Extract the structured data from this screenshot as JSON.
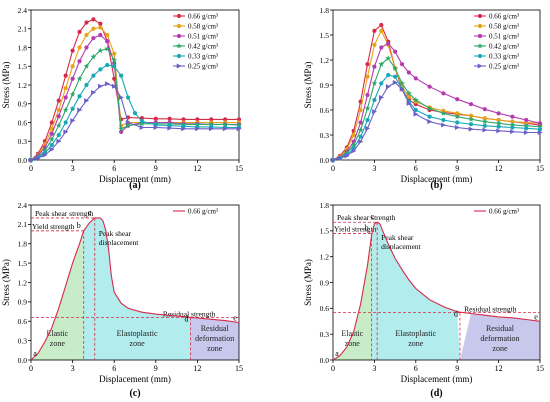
{
  "chart_data": [
    {
      "id": "a",
      "type": "line",
      "panel_label": "(a)",
      "xlabel": "Displacement (mm)",
      "ylabel": "Stress (MPa)",
      "xlim": [
        0,
        15
      ],
      "ylim": [
        0,
        2.4
      ],
      "xticks": [
        0,
        3,
        6,
        9,
        12,
        15
      ],
      "yticks": [
        0,
        0.3,
        0.6,
        0.9,
        1.2,
        1.5,
        1.8,
        2.1,
        2.4
      ],
      "ytick_labels": [
        "0.0",
        "0.3",
        "0.6",
        "0.9",
        "1.2",
        "1.5",
        "1.8",
        "2.1",
        "2.4"
      ],
      "legend_position": "top-right",
      "series": [
        {
          "name": "0.66 g/cm³",
          "color": "#d62a4a",
          "marker": "circle",
          "x": [
            0,
            0.5,
            1,
            1.5,
            2,
            2.5,
            3,
            3.5,
            4,
            4.5,
            5,
            5.5,
            6,
            6.5,
            7,
            8,
            9,
            10,
            11,
            12,
            13,
            14,
            15
          ],
          "y": [
            0,
            0.1,
            0.3,
            0.6,
            0.95,
            1.35,
            1.75,
            2.05,
            2.2,
            2.25,
            2.18,
            1.9,
            1.3,
            0.65,
            0.68,
            0.67,
            0.66,
            0.66,
            0.65,
            0.65,
            0.65,
            0.65,
            0.65
          ]
        },
        {
          "name": "0.58 g/cm³",
          "color": "#e8a317",
          "marker": "circle",
          "x": [
            0,
            0.5,
            1,
            1.5,
            2,
            2.5,
            3,
            3.5,
            4,
            4.5,
            5,
            5.5,
            6,
            6.5,
            7,
            8,
            9,
            10,
            11,
            12,
            13,
            14,
            15
          ],
          "y": [
            0,
            0.08,
            0.25,
            0.5,
            0.8,
            1.15,
            1.5,
            1.8,
            2.0,
            2.1,
            2.12,
            2.0,
            1.7,
            0.55,
            0.6,
            0.6,
            0.6,
            0.6,
            0.6,
            0.6,
            0.6,
            0.6,
            0.6
          ]
        },
        {
          "name": "0.51 g/cm³",
          "color": "#b43bb0",
          "marker": "circle",
          "x": [
            0,
            0.5,
            1,
            1.5,
            2,
            2.5,
            3,
            3.5,
            4,
            4.5,
            5,
            5.5,
            6,
            6.5,
            7,
            8,
            9,
            10,
            11,
            12,
            13,
            14,
            15
          ],
          "y": [
            0,
            0.07,
            0.2,
            0.42,
            0.7,
            1.0,
            1.3,
            1.58,
            1.8,
            1.95,
            2.0,
            1.9,
            1.55,
            0.45,
            0.55,
            0.6,
            0.6,
            0.6,
            0.58,
            0.58,
            0.57,
            0.57,
            0.57
          ]
        },
        {
          "name": "0.42 g/cm³",
          "color": "#2ea86a",
          "marker": "star",
          "x": [
            0,
            0.5,
            1,
            1.5,
            2,
            2.5,
            3,
            3.5,
            4,
            4.5,
            5,
            5.5,
            6,
            6.5,
            7,
            8,
            9,
            10,
            11,
            12,
            13,
            14,
            15
          ],
          "y": [
            0,
            0.05,
            0.15,
            0.33,
            0.55,
            0.8,
            1.05,
            1.3,
            1.5,
            1.65,
            1.75,
            1.78,
            1.6,
            0.5,
            0.55,
            0.58,
            0.58,
            0.58,
            0.57,
            0.57,
            0.57,
            0.57,
            0.56
          ]
        },
        {
          "name": "0.33 g/cm³",
          "color": "#17a8b8",
          "marker": "circle",
          "x": [
            0,
            0.5,
            1,
            1.5,
            2,
            2.5,
            3,
            3.5,
            4,
            4.5,
            5,
            5.5,
            6,
            6.5,
            7,
            7.5,
            8,
            9,
            10,
            11,
            12,
            13,
            14,
            15
          ],
          "y": [
            0,
            0.04,
            0.11,
            0.24,
            0.4,
            0.6,
            0.82,
            1.02,
            1.2,
            1.35,
            1.45,
            1.52,
            1.5,
            1.35,
            1.0,
            0.75,
            0.62,
            0.56,
            0.55,
            0.54,
            0.53,
            0.53,
            0.52,
            0.52
          ]
        },
        {
          "name": "0.25 g/cm³",
          "color": "#6b5fc8",
          "marker": "triangle-right",
          "x": [
            0,
            0.5,
            1,
            1.5,
            2,
            2.5,
            3,
            3.5,
            4,
            4.5,
            5,
            5.5,
            6,
            6.5,
            7,
            8,
            9,
            10,
            11,
            12,
            13,
            14,
            15
          ],
          "y": [
            0,
            0.03,
            0.08,
            0.17,
            0.3,
            0.45,
            0.63,
            0.8,
            0.95,
            1.08,
            1.18,
            1.22,
            1.18,
            1.0,
            0.6,
            0.52,
            0.52,
            0.51,
            0.5,
            0.5,
            0.5,
            0.5,
            0.5
          ]
        }
      ]
    },
    {
      "id": "b",
      "type": "line",
      "panel_label": "(b)",
      "xlabel": "Displacement (mm)",
      "ylabel": "Stress (MPa)",
      "xlim": [
        0,
        15
      ],
      "ylim": [
        0,
        1.8
      ],
      "xticks": [
        0,
        3,
        6,
        9,
        12,
        15
      ],
      "yticks": [
        0,
        0.3,
        0.6,
        0.9,
        1.2,
        1.5,
        1.8
      ],
      "ytick_labels": [
        "0.0",
        "0.3",
        "0.6",
        "0.9",
        "1.2",
        "1.5",
        "1.8"
      ],
      "legend_position": "top-right",
      "series": [
        {
          "name": "0.66 g/cm³",
          "color": "#d62a4a",
          "marker": "circle",
          "x": [
            0,
            0.5,
            1,
            1.5,
            2,
            2.5,
            3,
            3.5,
            4,
            4.5,
            5,
            5.5,
            6,
            7,
            8,
            9,
            10,
            11,
            12,
            13,
            14,
            15
          ],
          "y": [
            0,
            0.05,
            0.15,
            0.35,
            0.7,
            1.15,
            1.55,
            1.62,
            1.42,
            1.1,
            0.85,
            0.72,
            0.67,
            0.6,
            0.57,
            0.55,
            0.53,
            0.5,
            0.48,
            0.46,
            0.44,
            0.42
          ]
        },
        {
          "name": "0.58 g/cm³",
          "color": "#e8a317",
          "marker": "circle",
          "x": [
            0,
            0.5,
            1,
            1.5,
            2,
            2.5,
            3,
            3.5,
            4,
            4.5,
            5,
            5.5,
            6,
            7,
            8,
            9,
            10,
            11,
            12,
            13,
            14,
            15
          ],
          "y": [
            0,
            0.04,
            0.13,
            0.3,
            0.6,
            1.0,
            1.38,
            1.55,
            1.38,
            1.1,
            0.88,
            0.76,
            0.7,
            0.63,
            0.59,
            0.56,
            0.53,
            0.5,
            0.48,
            0.46,
            0.45,
            0.44
          ]
        },
        {
          "name": "0.51 g/cm³",
          "color": "#b43bb0",
          "marker": "circle",
          "x": [
            0,
            0.5,
            1,
            1.5,
            2,
            2.5,
            3,
            3.5,
            4,
            4.5,
            5,
            5.5,
            6,
            7,
            8,
            9,
            10,
            11,
            12,
            13,
            14,
            15
          ],
          "y": [
            0,
            0.03,
            0.1,
            0.22,
            0.45,
            0.78,
            1.12,
            1.35,
            1.4,
            1.3,
            1.15,
            1.05,
            0.98,
            0.88,
            0.8,
            0.73,
            0.67,
            0.61,
            0.56,
            0.52,
            0.48,
            0.44
          ]
        },
        {
          "name": "0.42 g/cm³",
          "color": "#2ea86a",
          "marker": "star",
          "x": [
            0,
            0.5,
            1,
            1.5,
            2,
            2.5,
            3,
            3.5,
            4,
            4.5,
            5,
            5.5,
            6,
            7,
            8,
            9,
            10,
            11,
            12,
            13,
            14,
            15
          ],
          "y": [
            0,
            0.03,
            0.08,
            0.18,
            0.36,
            0.62,
            0.92,
            1.15,
            1.22,
            1.1,
            0.92,
            0.8,
            0.72,
            0.62,
            0.56,
            0.52,
            0.49,
            0.46,
            0.44,
            0.42,
            0.41,
            0.4
          ]
        },
        {
          "name": "0.33 g/cm³",
          "color": "#17a8b8",
          "marker": "circle",
          "x": [
            0,
            0.5,
            1,
            1.5,
            2,
            2.5,
            3,
            3.5,
            4,
            4.5,
            5,
            5.5,
            6,
            7,
            8,
            9,
            10,
            11,
            12,
            13,
            14,
            15
          ],
          "y": [
            0,
            0.02,
            0.06,
            0.14,
            0.28,
            0.48,
            0.72,
            0.92,
            1.02,
            1.0,
            0.85,
            0.7,
            0.6,
            0.52,
            0.48,
            0.45,
            0.43,
            0.41,
            0.4,
            0.39,
            0.38,
            0.37
          ]
        },
        {
          "name": "0.25 g/cm³",
          "color": "#6b5fc8",
          "marker": "triangle-right",
          "x": [
            0,
            0.5,
            1,
            1.5,
            2,
            2.5,
            3,
            3.5,
            4,
            4.5,
            5,
            5.5,
            6,
            7,
            8,
            9,
            10,
            11,
            12,
            13,
            14,
            15
          ],
          "y": [
            0,
            0.02,
            0.05,
            0.11,
            0.22,
            0.38,
            0.58,
            0.75,
            0.88,
            0.93,
            0.85,
            0.68,
            0.55,
            0.46,
            0.42,
            0.39,
            0.37,
            0.36,
            0.35,
            0.34,
            0.33,
            0.33
          ]
        }
      ]
    },
    {
      "id": "c",
      "type": "line",
      "panel_label": "(c)",
      "xlabel": "Displacement (mm)",
      "ylabel": "Stress (MPa)",
      "xlim": [
        0,
        15
      ],
      "ylim": [
        0,
        2.4
      ],
      "xticks": [
        0,
        3,
        6,
        9,
        12,
        15
      ],
      "yticks": [
        0,
        0.3,
        0.6,
        0.9,
        1.2,
        1.5,
        1.8,
        2.1,
        2.4
      ],
      "ytick_labels": [
        "0.0",
        "0.3",
        "0.6",
        "0.9",
        "1.2",
        "1.5",
        "1.8",
        "2.1",
        "2.4"
      ],
      "legend_position": "top-right",
      "series": [
        {
          "name": "0.66 g/cm³",
          "color": "#d62a4a",
          "x": [
            0,
            0.5,
            1,
            1.5,
            2,
            2.5,
            3,
            3.5,
            3.8,
            4.2,
            4.6,
            5,
            5.2,
            5.4,
            5.6,
            5.8,
            6,
            6.5,
            7,
            8,
            9,
            10,
            11,
            11.5,
            12,
            13,
            14,
            15
          ],
          "y": [
            0,
            0.1,
            0.28,
            0.5,
            0.8,
            1.15,
            1.5,
            1.8,
            2.0,
            2.12,
            2.2,
            2.2,
            2.15,
            2.0,
            1.7,
            1.3,
            1.05,
            0.88,
            0.8,
            0.74,
            0.71,
            0.69,
            0.67,
            0.66,
            0.65,
            0.63,
            0.61,
            0.58
          ]
        }
      ],
      "zones": [
        {
          "label_lines": [
            "Elastic",
            "zone"
          ],
          "x_range": [
            0,
            3.8
          ],
          "color": "#c8ebc8"
        },
        {
          "label_lines": [
            "Elastoplastic",
            "zone"
          ],
          "x_range": [
            3.8,
            11.5
          ],
          "color": "#b2ecec"
        },
        {
          "label_lines": [
            "Residual",
            "deformation",
            "zone"
          ],
          "x_range": [
            11.5,
            15
          ],
          "color": "#c8c8ec"
        }
      ],
      "points": [
        {
          "label": "a",
          "x": 0,
          "y": 0
        },
        {
          "label": "b",
          "x": 3.8,
          "y": 2.0
        },
        {
          "label": "c",
          "x": 4.6,
          "y": 2.2
        },
        {
          "label": "d",
          "x": 11.5,
          "y": 0.66
        },
        {
          "label": "e",
          "x": 15,
          "y": 0.58
        }
      ],
      "reference_lines": [
        {
          "y": 2.2,
          "x_to": 4.6,
          "label": "Peak shear strength"
        },
        {
          "y": 2.0,
          "x_to": 3.8,
          "label": "Yield strength"
        },
        {
          "y": 0.66,
          "x_to": 15,
          "label": "Residual strength"
        }
      ],
      "annotations": [
        "Peak shear displacement"
      ]
    },
    {
      "id": "d",
      "type": "line",
      "panel_label": "(d)",
      "xlabel": "Displacement (mm)",
      "ylabel": "Stress (MPa)",
      "xlim": [
        0,
        15
      ],
      "ylim": [
        0,
        1.8
      ],
      "xticks": [
        0,
        3,
        6,
        9,
        12,
        15
      ],
      "yticks": [
        0,
        0.3,
        0.6,
        0.9,
        1.2,
        1.5,
        1.8
      ],
      "ytick_labels": [
        "0.0",
        "0.3",
        "0.6",
        "0.9",
        "1.2",
        "1.5",
        "1.8"
      ],
      "legend_position": "top-right",
      "series": [
        {
          "name": "0.66 g/cm³",
          "color": "#d62a4a",
          "x": [
            0,
            0.5,
            1,
            1.5,
            2,
            2.5,
            2.8,
            3,
            3.2,
            3.4,
            3.6,
            4,
            4.5,
            5,
            5.5,
            6,
            7,
            8,
            9,
            10,
            11,
            12,
            13,
            14,
            15
          ],
          "y": [
            0,
            0.05,
            0.15,
            0.33,
            0.65,
            1.1,
            1.45,
            1.58,
            1.6,
            1.58,
            1.5,
            1.35,
            1.18,
            1.05,
            0.93,
            0.83,
            0.7,
            0.62,
            0.56,
            0.54,
            0.52,
            0.5,
            0.49,
            0.47,
            0.45
          ]
        }
      ],
      "zones": [
        {
          "label_lines": [
            "Elastic",
            "zone"
          ],
          "x_range": [
            0,
            2.8
          ],
          "color": "#c8ebc8"
        },
        {
          "label_lines": [
            "Elastoplastic",
            "zone"
          ],
          "x_range": [
            2.8,
            9.2
          ],
          "color": "#b2ecec"
        },
        {
          "label_lines": [
            "Residual",
            "deformation",
            "zone"
          ],
          "x_range": [
            9.2,
            15
          ],
          "color": "#c8c8ec"
        }
      ],
      "points": [
        {
          "label": "a",
          "x": 0,
          "y": 0
        },
        {
          "label": "b",
          "x": 2.8,
          "y": 1.47
        },
        {
          "label": "c",
          "x": 3.2,
          "y": 1.6
        },
        {
          "label": "d",
          "x": 9.2,
          "y": 0.55
        },
        {
          "label": "e",
          "x": 15,
          "y": 0.45
        }
      ],
      "reference_lines": [
        {
          "y": 1.6,
          "x_to": 3.2,
          "label": "Peak shear strength"
        },
        {
          "y": 1.47,
          "x_to": 2.8,
          "label": "Yield strength"
        },
        {
          "y": 0.55,
          "x_to": 15,
          "label": "Residual strength"
        }
      ],
      "annotations": [
        "Peak shear displacement"
      ]
    }
  ]
}
